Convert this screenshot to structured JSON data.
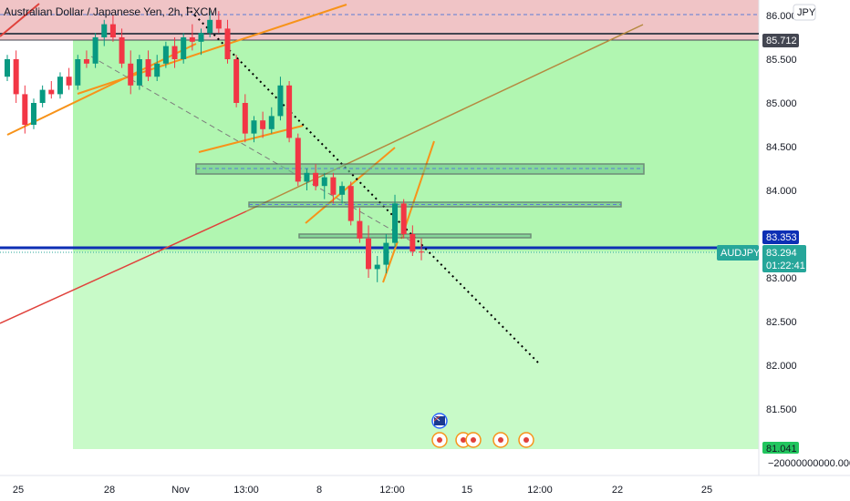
{
  "chart_data": {
    "type": "candlestick",
    "title": "Australian Dollar / Japanese Yen, 2h, FXCM",
    "currency_button": "JPY",
    "symbol": "AUDJPY",
    "y_ticks": [
      "86.000",
      "85.500",
      "85.000",
      "84.500",
      "84.000",
      "83.500",
      "83.000",
      "82.500",
      "82.000",
      "81.500"
    ],
    "y_ticks_values": [
      86.0,
      85.5,
      85.0,
      84.5,
      84.0,
      83.5,
      83.0,
      82.5,
      82.0,
      81.5
    ],
    "ylim": [
      80.71,
      86.17
    ],
    "x_ticks": [
      "25",
      "28",
      "Nov",
      "13:00",
      "8",
      "12:00",
      "15",
      "12:00",
      "22",
      "25"
    ],
    "y_tags": {
      "top_level": {
        "text": "85.712",
        "value": 85.712,
        "color": "#434651"
      },
      "blue_level": {
        "text": "83.353",
        "value": 83.353,
        "color": "#0d2fb4"
      },
      "last_price": {
        "text": "83.294",
        "value": 83.294,
        "color": "#26a69a"
      },
      "countdown": "01:22:41",
      "target": {
        "text": "81.041",
        "value": 81.041,
        "color": "#22c55e"
      },
      "bottom_value": "−20000000000.000"
    },
    "candles": [
      [
        85.3,
        85.55,
        85.25,
        85.5
      ],
      [
        85.5,
        85.6,
        85.0,
        85.1
      ],
      [
        85.1,
        85.2,
        84.65,
        84.75
      ],
      [
        84.75,
        85.05,
        84.7,
        85.0
      ],
      [
        85.0,
        85.2,
        84.95,
        85.15
      ],
      [
        85.15,
        85.25,
        85.05,
        85.1
      ],
      [
        85.1,
        85.35,
        85.05,
        85.3
      ],
      [
        85.3,
        85.4,
        85.15,
        85.2
      ],
      [
        85.2,
        85.55,
        85.15,
        85.5
      ],
      [
        85.5,
        85.6,
        85.4,
        85.45
      ],
      [
        85.45,
        85.8,
        85.4,
        85.75
      ],
      [
        85.75,
        85.95,
        85.65,
        85.9
      ],
      [
        85.9,
        86.0,
        85.7,
        85.75
      ],
      [
        85.75,
        85.85,
        85.4,
        85.45
      ],
      [
        85.45,
        85.6,
        85.1,
        85.2
      ],
      [
        85.2,
        85.55,
        85.15,
        85.5
      ],
      [
        85.5,
        85.6,
        85.25,
        85.3
      ],
      [
        85.3,
        85.55,
        85.25,
        85.45
      ],
      [
        85.45,
        85.7,
        85.4,
        85.65
      ],
      [
        85.65,
        85.75,
        85.4,
        85.5
      ],
      [
        85.5,
        85.8,
        85.45,
        85.75
      ],
      [
        85.75,
        85.9,
        85.6,
        85.7
      ],
      [
        85.7,
        85.85,
        85.55,
        85.8
      ],
      [
        85.8,
        86.05,
        85.75,
        85.95
      ],
      [
        85.95,
        86.05,
        85.8,
        85.85
      ],
      [
        85.85,
        85.95,
        85.45,
        85.5
      ],
      [
        85.5,
        85.55,
        84.95,
        85.0
      ],
      [
        85.0,
        85.1,
        84.55,
        84.65
      ],
      [
        84.65,
        84.85,
        84.55,
        84.8
      ],
      [
        84.8,
        84.9,
        84.6,
        84.7
      ],
      [
        84.7,
        84.95,
        84.65,
        84.85
      ],
      [
        84.85,
        85.3,
        84.8,
        85.2
      ],
      [
        85.2,
        85.25,
        84.55,
        84.6
      ],
      [
        84.6,
        84.65,
        84.05,
        84.1
      ],
      [
        84.1,
        84.25,
        84.0,
        84.2
      ],
      [
        84.2,
        84.3,
        84.0,
        84.05
      ],
      [
        84.05,
        84.2,
        83.9,
        84.15
      ],
      [
        84.15,
        84.2,
        83.85,
        83.95
      ],
      [
        83.95,
        84.1,
        83.85,
        84.05
      ],
      [
        84.05,
        84.1,
        83.6,
        83.65
      ],
      [
        83.65,
        83.8,
        83.4,
        83.45
      ],
      [
        83.45,
        83.6,
        83.0,
        83.1
      ],
      [
        83.1,
        83.25,
        82.95,
        83.15
      ],
      [
        83.15,
        83.5,
        83.05,
        83.4
      ],
      [
        83.4,
        83.95,
        83.35,
        83.85
      ],
      [
        83.85,
        83.9,
        83.45,
        83.5
      ],
      [
        83.5,
        83.6,
        83.25,
        83.3
      ],
      [
        83.3,
        83.45,
        83.2,
        83.294
      ]
    ],
    "levels": {
      "resistance_top": 85.712,
      "target_zone_bottom": 81.041,
      "blue_support": 83.353,
      "dashed_top": 86.0
    },
    "zones": [
      {
        "top": 84.31,
        "bottom": 84.19
      },
      {
        "top": 83.87,
        "bottom": 83.82
      },
      {
        "top": 83.53,
        "bottom": 83.49
      }
    ],
    "markers": {
      "flag_icon": "australia-flag-icon",
      "event_icons": [
        "economic-event-icon",
        "economic-event-icon",
        "economic-event-icon",
        "economic-event-icon",
        "economic-event-icon"
      ]
    }
  }
}
